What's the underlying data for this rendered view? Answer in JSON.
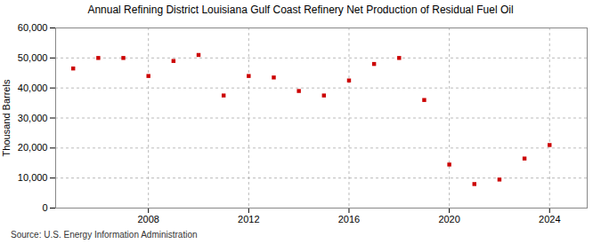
{
  "chart_data": {
    "type": "scatter",
    "title": "Annual Refining District Louisiana Gulf Coast Refinery Net Production of Residual Fuel Oil",
    "ylabel": "Thousand Barrels",
    "source": "Source: U.S. Energy Information Administration",
    "x": [
      2005,
      2006,
      2007,
      2008,
      2009,
      2010,
      2011,
      2012,
      2013,
      2014,
      2015,
      2016,
      2017,
      2018,
      2019,
      2020,
      2021,
      2022,
      2023,
      2024
    ],
    "values": [
      46500,
      50000,
      50000,
      44000,
      49000,
      51000,
      37500,
      44000,
      43500,
      39000,
      37500,
      42500,
      48000,
      50000,
      36000,
      14500,
      8000,
      9500,
      16500,
      21000
    ],
    "color": "#cc0000",
    "marker": "square",
    "xlim": [
      2004.3,
      2025.5
    ],
    "xticks": [
      2008,
      2012,
      2016,
      2020,
      2024
    ],
    "ylim": [
      0,
      60000
    ],
    "yticks": [
      0,
      {
        "value": 10000,
        "label": "10,000"
      },
      {
        "value": 20000,
        "label": "20,000"
      },
      {
        "value": 30000,
        "label": "30,000"
      },
      {
        "value": 40000,
        "label": "40,000"
      },
      {
        "value": 50000,
        "label": "50,000"
      },
      {
        "value": 60000,
        "label": "60,000"
      }
    ],
    "grid": true
  }
}
